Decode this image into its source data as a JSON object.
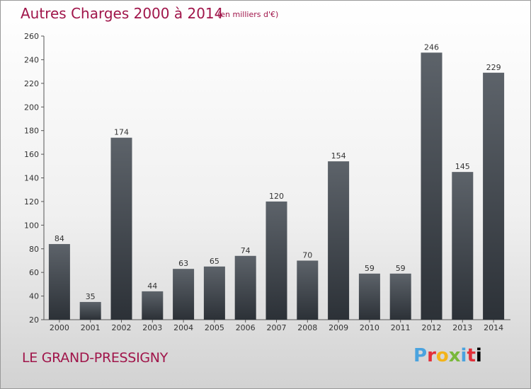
{
  "title": "Autres Charges 2000 à 2014",
  "unit_note": "(en milliers d'€)",
  "location": "LE GRAND-PRESSIGNY",
  "logo_text": "Proxiti",
  "colors": {
    "title": "#a0154a",
    "bar_top": "#5d636a",
    "bar_bottom": "#2c3137"
  },
  "chart_data": {
    "type": "bar",
    "title": "Autres Charges 2000 à 2014",
    "categories": [
      "2000",
      "2001",
      "2002",
      "2003",
      "2004",
      "2005",
      "2006",
      "2007",
      "2008",
      "2009",
      "2010",
      "2011",
      "2012",
      "2013",
      "2014"
    ],
    "values": [
      84,
      35,
      174,
      44,
      63,
      65,
      74,
      120,
      70,
      154,
      59,
      59,
      246,
      145,
      229
    ],
    "ylim": [
      20,
      260
    ],
    "yticks": [
      20,
      40,
      60,
      80,
      100,
      120,
      140,
      160,
      180,
      200,
      220,
      240,
      260
    ],
    "grid": false,
    "data_labels": true
  }
}
